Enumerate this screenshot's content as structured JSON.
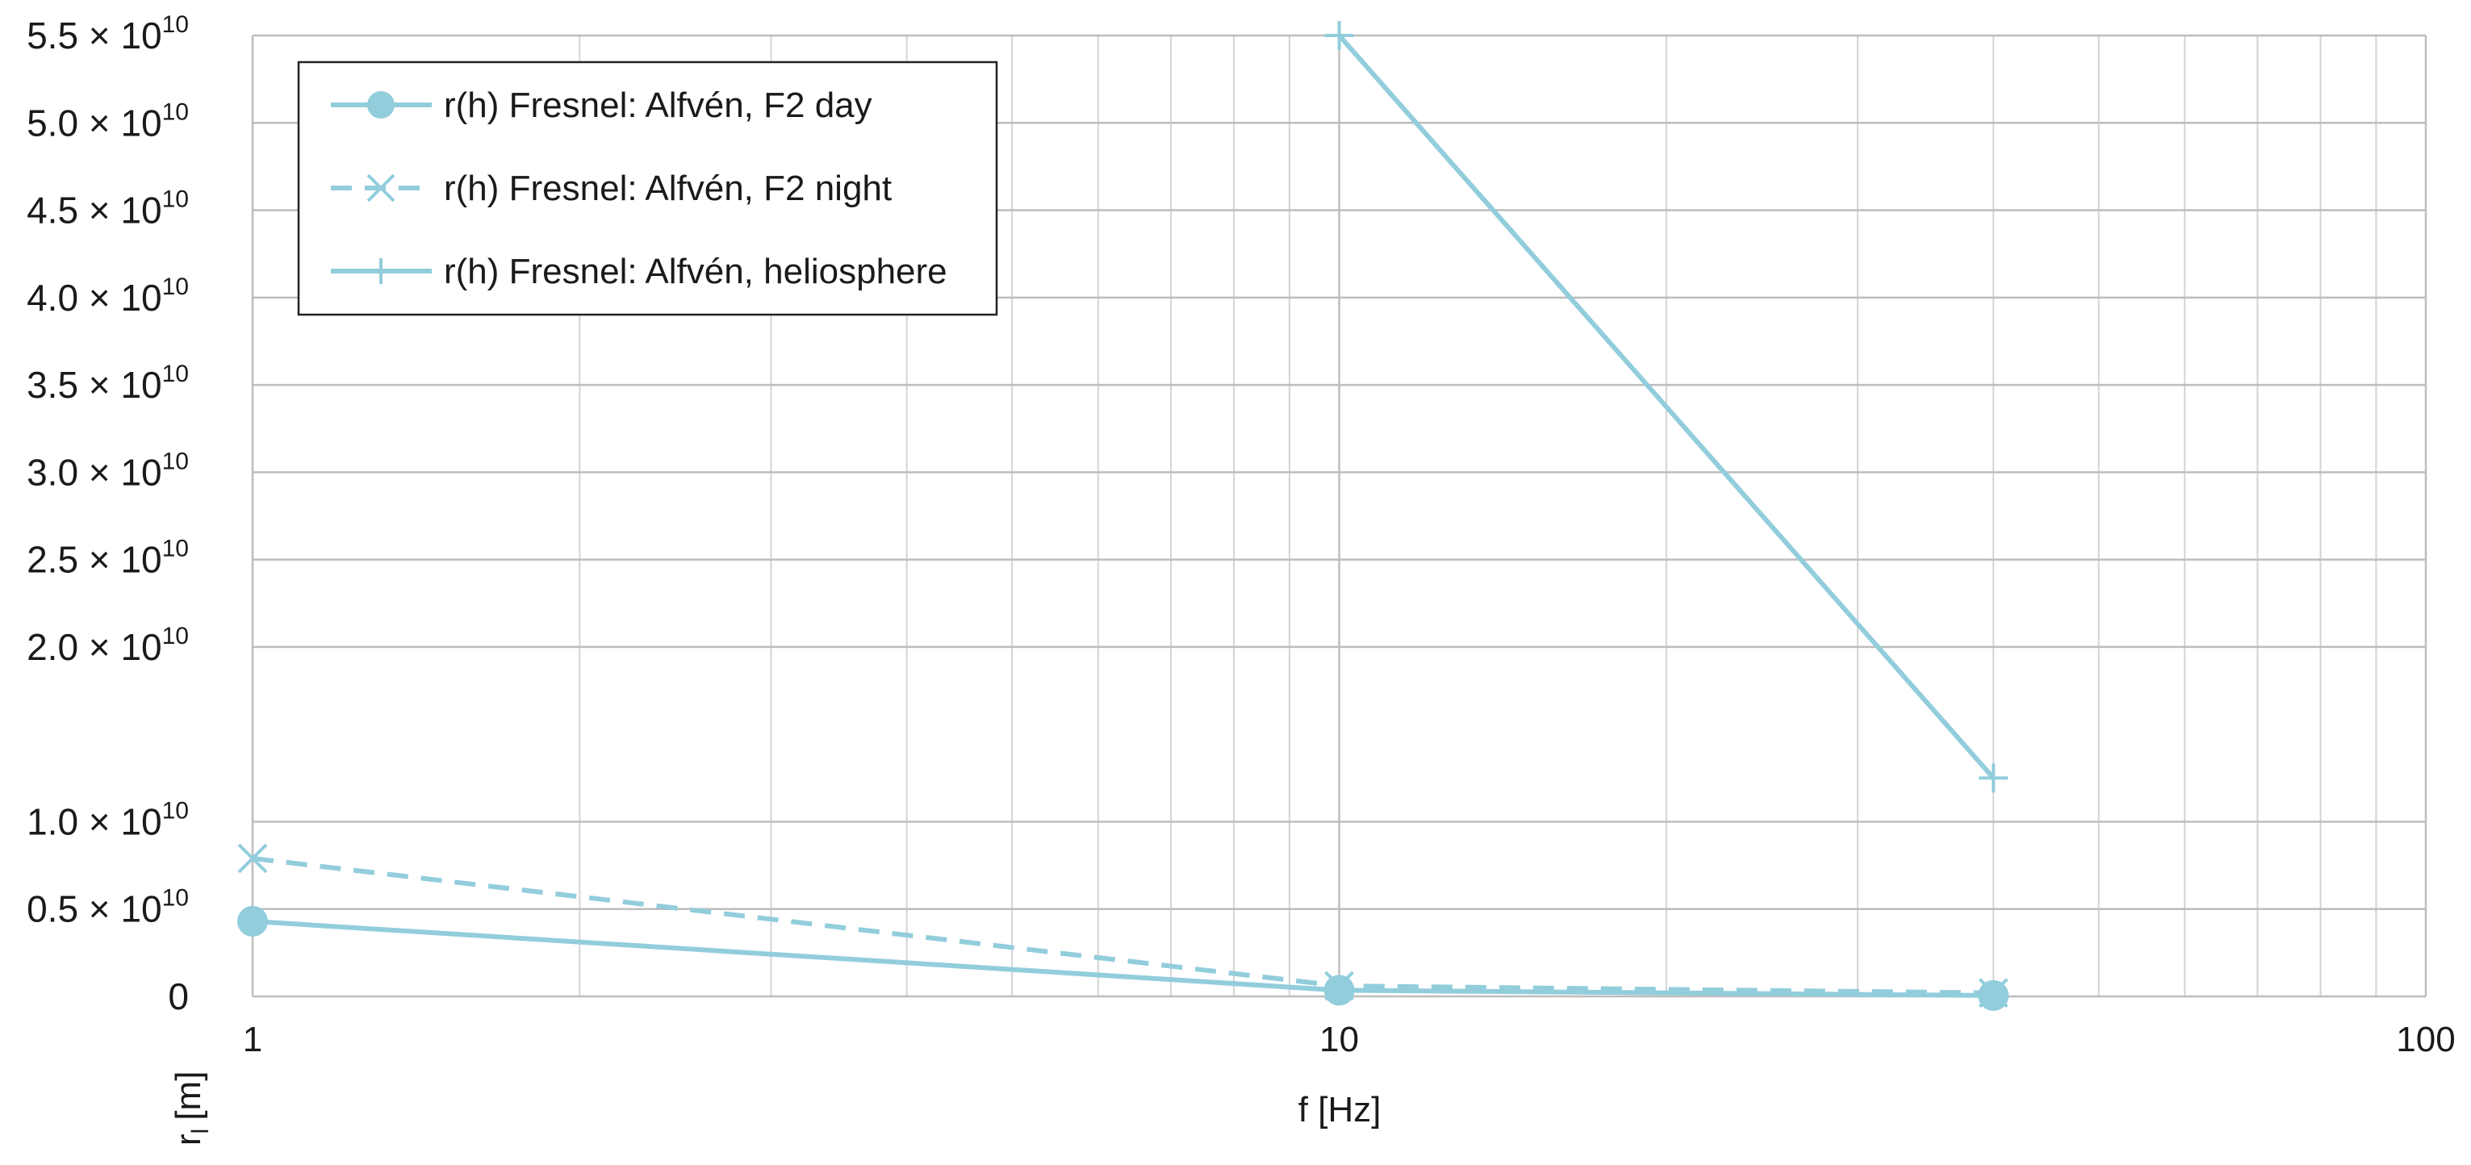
{
  "chart_data": {
    "type": "line",
    "xscale": "log",
    "xlim": [
      1,
      100
    ],
    "ylim": [
      0,
      55000000000
    ],
    "xlabel": "f [Hz]",
    "ylabel": "r",
    "ylabel_sub": "l",
    "ylabel_unit": "[m]",
    "grid": true,
    "legend_position": "top-left",
    "x_ticks": [
      {
        "value": 1,
        "label": "1"
      },
      {
        "value": 10,
        "label": "10"
      },
      {
        "value": 100,
        "label": "100"
      }
    ],
    "y_ticks": [
      {
        "value": 0,
        "mantissa": "0",
        "exponent": ""
      },
      {
        "value": 5000000000,
        "mantissa": "0.5 × 10",
        "exponent": "10"
      },
      {
        "value": 10000000000,
        "mantissa": "1.0 × 10",
        "exponent": "10"
      },
      {
        "value": 20000000000,
        "mantissa": "2.0 × 10",
        "exponent": "10"
      },
      {
        "value": 25000000000,
        "mantissa": "2.5 × 10",
        "exponent": "10"
      },
      {
        "value": 30000000000,
        "mantissa": "3.0 × 10",
        "exponent": "10"
      },
      {
        "value": 35000000000,
        "mantissa": "3.5 × 10",
        "exponent": "10"
      },
      {
        "value": 40000000000,
        "mantissa": "4.0 × 10",
        "exponent": "10"
      },
      {
        "value": 45000000000,
        "mantissa": "4.5 × 10",
        "exponent": "10"
      },
      {
        "value": 50000000000,
        "mantissa": "5.0 × 10",
        "exponent": "10"
      },
      {
        "value": 55000000000,
        "mantissa": "5.5 × 10",
        "exponent": "10"
      }
    ],
    "series": [
      {
        "name": "r(h) Fresnel: Alfvén, F2 day",
        "marker": "circle",
        "dash": "solid",
        "color": "#92cddc",
        "x": [
          1,
          10,
          40
        ],
        "y": [
          4300000000,
          350000000,
          50000000
        ]
      },
      {
        "name": "r(h) Fresnel: Alfvén, F2 night",
        "marker": "x",
        "dash": "dashed",
        "color": "#92cddc",
        "x": [
          1,
          10,
          40
        ],
        "y": [
          7900000000,
          600000000,
          200000000
        ]
      },
      {
        "name": "r(h) Fresnel: Alfvén, heliosphere",
        "marker": "plus",
        "dash": "solid",
        "color": "#92cddc",
        "x": [
          10,
          40
        ],
        "y": [
          55000000000,
          12500000000
        ]
      }
    ]
  }
}
